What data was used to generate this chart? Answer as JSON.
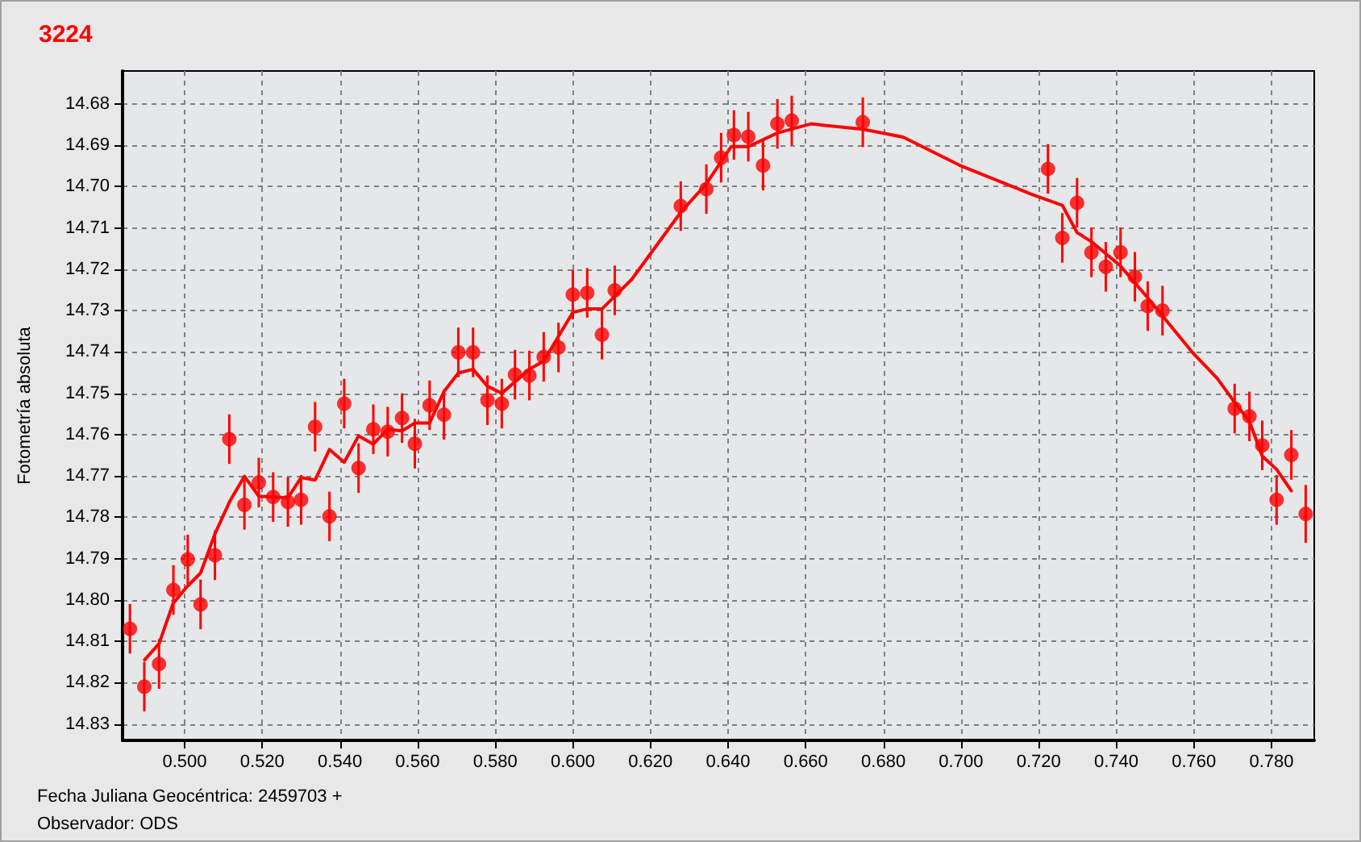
{
  "chart_data": {
    "type": "scatter",
    "title": "3224",
    "ylabel": "Fotometría absoluta",
    "xlabel": "Fecha Juliana Geocéntrica: 2459703 +",
    "annotations": [
      "Observador: ODS"
    ],
    "xlim": [
      0.484,
      0.791
    ],
    "ylim": [
      14.834,
      14.672
    ],
    "xticks": [
      {
        "value": 0.5,
        "label": "0.500"
      },
      {
        "value": 0.52,
        "label": "0.520"
      },
      {
        "value": 0.54,
        "label": "0.540"
      },
      {
        "value": 0.56,
        "label": "0.560"
      },
      {
        "value": 0.58,
        "label": "0.580"
      },
      {
        "value": 0.6,
        "label": "0.600"
      },
      {
        "value": 0.62,
        "label": "0.620"
      },
      {
        "value": 0.64,
        "label": "0.640"
      },
      {
        "value": 0.66,
        "label": "0.660"
      },
      {
        "value": 0.68,
        "label": "0.680"
      },
      {
        "value": 0.7,
        "label": "0.700"
      },
      {
        "value": 0.72,
        "label": "0.720"
      },
      {
        "value": 0.74,
        "label": "0.740"
      },
      {
        "value": 0.76,
        "label": "0.760"
      },
      {
        "value": 0.78,
        "label": "0.780"
      }
    ],
    "yticks": [
      14.68,
      14.69,
      {
        "value": 14.7,
        "label": "14.70"
      },
      14.71,
      14.72,
      14.73,
      14.74,
      14.75,
      14.76,
      14.77,
      14.78,
      14.79,
      {
        "value": 14.8,
        "label": "14.80"
      },
      14.81,
      14.82,
      14.83
    ],
    "grid": true,
    "series": [
      {
        "type": "scatter",
        "color": "#ff0000",
        "marker": "circle",
        "x": [
          0.4859,
          0.4896,
          0.4934,
          0.4971,
          0.5008,
          0.5041,
          0.5078,
          0.5115,
          0.5154,
          0.5191,
          0.5228,
          0.5266,
          0.53,
          0.5336,
          0.5373,
          0.5411,
          0.5448,
          0.5486,
          0.5523,
          0.556,
          0.5593,
          0.5631,
          0.5668,
          0.5705,
          0.5743,
          0.578,
          0.5817,
          0.5851,
          0.5888,
          0.5925,
          0.5963,
          0.6,
          0.6037,
          0.6075,
          0.6108,
          0.6278,
          0.6344,
          0.6382,
          0.6415,
          0.6452,
          0.649,
          0.6527,
          0.6564,
          0.6747,
          0.7224,
          0.7261,
          0.7299,
          0.7336,
          0.7373,
          0.7411,
          0.7448,
          0.7481,
          0.7519,
          0.7705,
          0.7743,
          0.7776,
          0.7813,
          0.7851,
          0.7888
        ],
        "values": [
          14.807,
          14.821,
          14.8155,
          14.7976,
          14.7902,
          14.8011,
          14.7892,
          14.7611,
          14.777,
          14.7716,
          14.7751,
          14.7763,
          14.7758,
          14.7581,
          14.7798,
          14.7525,
          14.7681,
          14.7587,
          14.7593,
          14.756,
          14.7622,
          14.7529,
          14.7552,
          14.7401,
          14.7401,
          14.7517,
          14.7525,
          14.7455,
          14.7457,
          14.7412,
          14.7389,
          14.7261,
          14.7257,
          14.7358,
          14.7251,
          14.7047,
          14.7006,
          14.693,
          14.6875,
          14.6879,
          14.6949,
          14.6848,
          14.684,
          14.6844,
          14.6957,
          14.7124,
          14.7039,
          14.7159,
          14.7194,
          14.7159,
          14.7218,
          14.7289,
          14.73,
          14.7537,
          14.7556,
          14.7626,
          14.7758,
          14.7649,
          14.7792
        ],
        "errors": [
          0.006,
          0.006,
          0.006,
          0.006,
          0.006,
          0.006,
          0.006,
          0.006,
          0.006,
          0.006,
          0.006,
          0.006,
          0.006,
          0.006,
          0.006,
          0.006,
          0.006,
          0.006,
          0.006,
          0.006,
          0.006,
          0.006,
          0.006,
          0.006,
          0.006,
          0.006,
          0.006,
          0.006,
          0.006,
          0.006,
          0.006,
          0.006,
          0.006,
          0.006,
          0.006,
          0.006,
          0.006,
          0.006,
          0.006,
          0.006,
          0.006,
          0.006,
          0.006,
          0.006,
          0.006,
          0.006,
          0.006,
          0.006,
          0.006,
          0.006,
          0.006,
          0.006,
          0.006,
          0.006,
          0.006,
          0.006,
          0.006,
          0.006,
          0.007
        ]
      },
      {
        "type": "line",
        "color": "#ff0000",
        "marker": "none",
        "line_style": "solid",
        "x": [
          0.4897,
          0.4934,
          0.497,
          0.5004,
          0.5041,
          0.5078,
          0.5116,
          0.5154,
          0.5191,
          0.5266,
          0.53,
          0.5336,
          0.5373,
          0.5411,
          0.5448,
          0.5486,
          0.5523,
          0.556,
          0.5593,
          0.5631,
          0.5668,
          0.5705,
          0.5743,
          0.578,
          0.5817,
          0.5889,
          0.5925,
          0.6,
          0.6037,
          0.6075,
          0.6152,
          0.6278,
          0.6344,
          0.6408,
          0.6452,
          0.6527,
          0.6613,
          0.6747,
          0.6851,
          0.6996,
          0.7183,
          0.7261,
          0.7299,
          0.7336,
          0.7411,
          0.7481,
          0.7598,
          0.766,
          0.7705,
          0.7743,
          0.7776,
          0.7813,
          0.7851
        ],
        "values": [
          14.8145,
          14.8106,
          14.8009,
          14.797,
          14.7935,
          14.784,
          14.7762,
          14.7701,
          14.7749,
          14.7753,
          14.7704,
          14.771,
          14.7636,
          14.7667,
          14.7603,
          14.7623,
          14.7587,
          14.7591,
          14.7572,
          14.7572,
          14.7496,
          14.7451,
          14.7442,
          14.7483,
          14.75,
          14.7441,
          14.7422,
          14.7304,
          14.7296,
          14.7296,
          14.7224,
          14.7062,
          14.6993,
          14.6903,
          14.6903,
          14.687,
          14.6848,
          14.6861,
          14.688,
          14.6948,
          14.7019,
          14.7045,
          14.7111,
          14.7133,
          14.7192,
          14.7269,
          14.7403,
          14.7464,
          14.7522,
          14.7568,
          14.7652,
          14.7684,
          14.7736
        ]
      }
    ]
  }
}
